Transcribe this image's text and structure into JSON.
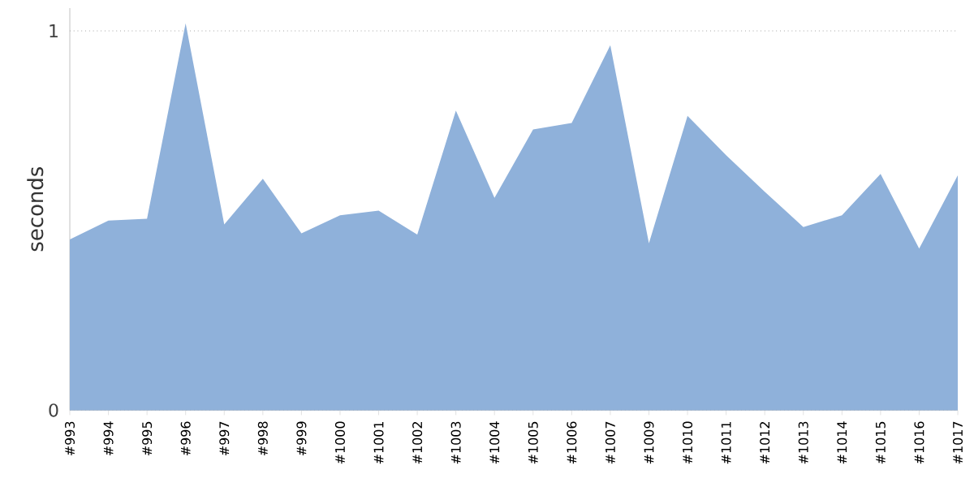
{
  "chart_data": {
    "type": "area",
    "ylabel": "seconds",
    "categories": [
      "#993",
      "#994",
      "#995",
      "#996",
      "#997",
      "#998",
      "#999",
      "#1000",
      "#1001",
      "#1002",
      "#1003",
      "#1004",
      "#1005",
      "#1006",
      "#1007",
      "#1009",
      "#1010",
      "#1011",
      "#1012",
      "#1013",
      "#1014",
      "#1015",
      "#1016",
      "#1017"
    ],
    "values": [
      0.45,
      0.5,
      0.505,
      1.02,
      0.49,
      0.61,
      0.466,
      0.514,
      0.526,
      0.463,
      0.79,
      0.56,
      0.74,
      0.757,
      0.962,
      0.44,
      0.776,
      0.672,
      0.576,
      0.483,
      0.514,
      0.623,
      0.426,
      0.619
    ],
    "color": "#8fb1da",
    "ylim": [
      0,
      1.06
    ],
    "yticks": [
      0,
      1
    ],
    "grid": "y"
  }
}
